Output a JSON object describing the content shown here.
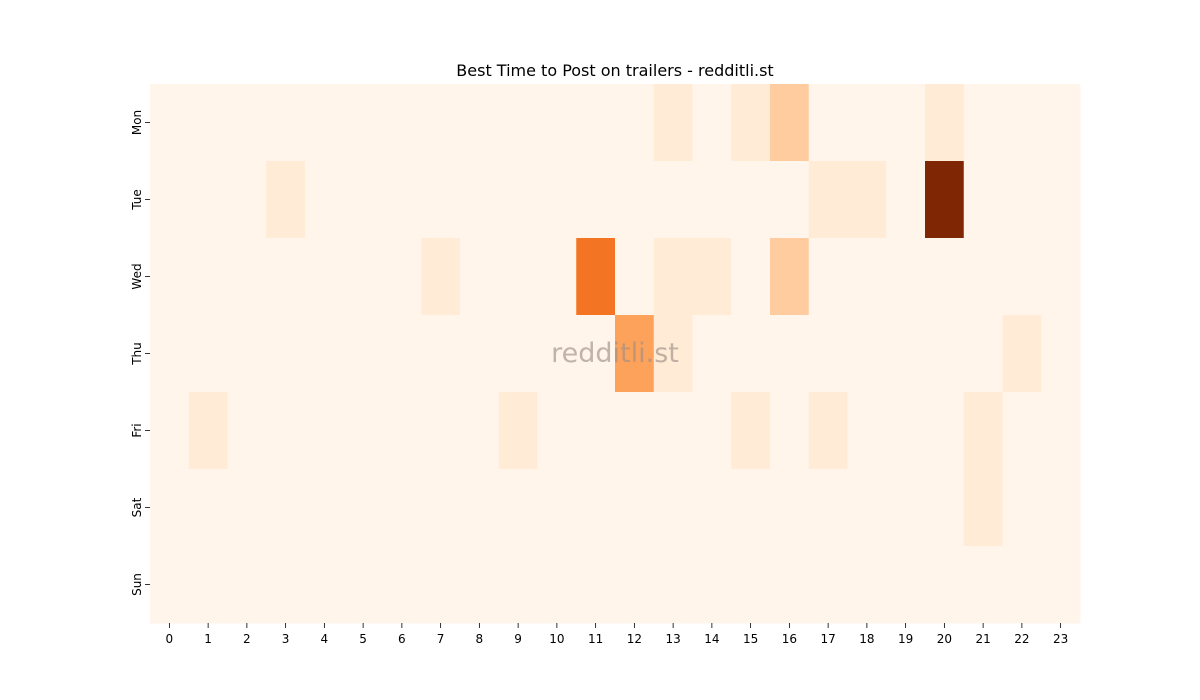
{
  "chart_data": {
    "type": "heatmap",
    "title": "Best Time to Post on trailers - redditli.st",
    "watermark": "redditli.st",
    "x_categories": [
      "0",
      "1",
      "2",
      "3",
      "4",
      "5",
      "6",
      "7",
      "8",
      "9",
      "10",
      "11",
      "12",
      "13",
      "14",
      "15",
      "16",
      "17",
      "18",
      "19",
      "20",
      "21",
      "22",
      "23"
    ],
    "y_categories": [
      "Mon",
      "Tue",
      "Wed",
      "Thu",
      "Fri",
      "Sat",
      "Sun"
    ],
    "values": [
      [
        0,
        0,
        0,
        0,
        0,
        0,
        0,
        0,
        0,
        0,
        0,
        0,
        0,
        1,
        0,
        1,
        3,
        0,
        0,
        0,
        1,
        0,
        0,
        0
      ],
      [
        0,
        0,
        0,
        1,
        0,
        0,
        0,
        0,
        0,
        0,
        0,
        0,
        0,
        0,
        0,
        0,
        0,
        1,
        1,
        0,
        10,
        0,
        0,
        0
      ],
      [
        0,
        0,
        0,
        0,
        0,
        0,
        0,
        1,
        0,
        0,
        0,
        7,
        0,
        1,
        1,
        0,
        3,
        0,
        0,
        0,
        0,
        0,
        0,
        0
      ],
      [
        0,
        0,
        0,
        0,
        0,
        0,
        0,
        0,
        0,
        0,
        0,
        0,
        5,
        1,
        0,
        0,
        0,
        0,
        0,
        0,
        0,
        0,
        1,
        0
      ],
      [
        0,
        1,
        0,
        0,
        0,
        0,
        0,
        0,
        0,
        1,
        0,
        0,
        0,
        0,
        0,
        1,
        0,
        1,
        0,
        0,
        0,
        1,
        0,
        0
      ],
      [
        0,
        0,
        0,
        0,
        0,
        0,
        0,
        0,
        0,
        0,
        0,
        0,
        0,
        0,
        0,
        0,
        0,
        0,
        0,
        0,
        0,
        1,
        0,
        0
      ],
      [
        0,
        0,
        0,
        0,
        0,
        0,
        0,
        0,
        0,
        0,
        0,
        0,
        0,
        0,
        0,
        0,
        0,
        0,
        0,
        0,
        0,
        0,
        0,
        0
      ]
    ],
    "value_range": [
      0,
      10
    ],
    "colormap": "Oranges",
    "colors": [
      "#fff5eb",
      "#fee0c1",
      "#fdb77a",
      "#fd8c3b",
      "#e95e0d",
      "#7f2704"
    ],
    "grid": false,
    "legend": "none"
  }
}
